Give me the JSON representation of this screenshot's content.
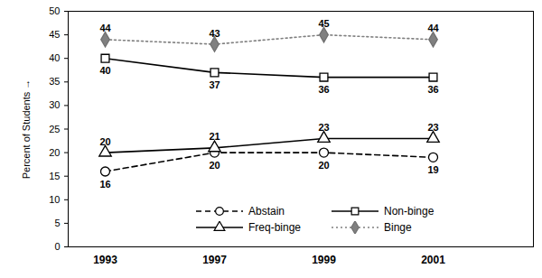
{
  "chart_data": {
    "type": "line",
    "categories": [
      "1993",
      "1997",
      "1999",
      "2001"
    ],
    "y_label": "Percent of Students",
    "ylim": [
      0,
      50
    ],
    "yticks": [
      0,
      5,
      10,
      15,
      20,
      25,
      30,
      35,
      40,
      45,
      50
    ],
    "grid": false,
    "legend": "bottom",
    "data_labels": true,
    "series": [
      {
        "name": "Abstain",
        "color": "#000000",
        "marker": "circle",
        "line_style": "dashed",
        "values": [
          16,
          20,
          20,
          19
        ]
      },
      {
        "name": "Non-binge",
        "color": "#000000",
        "marker": "square",
        "line_style": "solid",
        "values": [
          40,
          37,
          36,
          36
        ]
      },
      {
        "name": "Freq-binge",
        "color": "#000000",
        "marker": "triangle",
        "line_style": "solid",
        "values": [
          20,
          21,
          23,
          23
        ]
      },
      {
        "name": "Binge",
        "color": "#808080",
        "marker": "diamond",
        "line_style": "dotted",
        "values": [
          44,
          43,
          45,
          44
        ]
      }
    ]
  }
}
